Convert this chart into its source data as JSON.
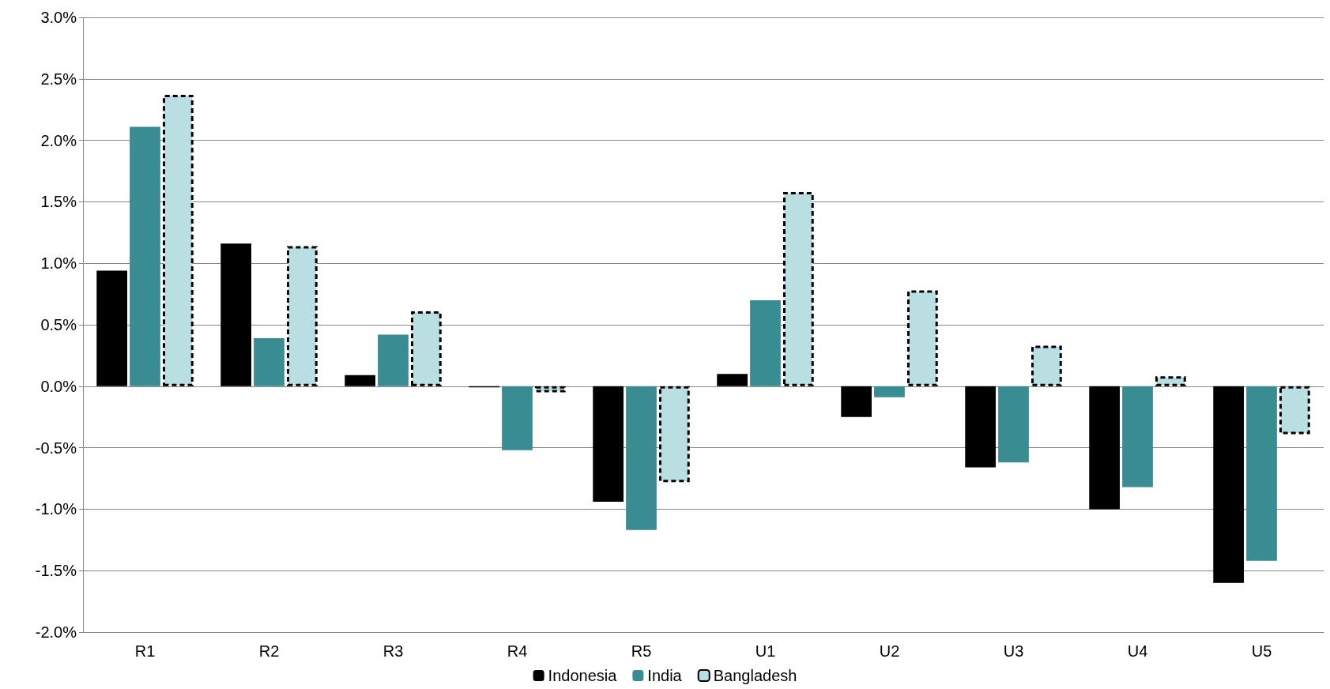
{
  "chart_data": {
    "type": "bar",
    "categories": [
      "R1",
      "R2",
      "R3",
      "R4",
      "R5",
      "U1",
      "U2",
      "U3",
      "U4",
      "U5"
    ],
    "series": [
      {
        "name": "Indonesia",
        "color": "#000000",
        "values": [
          0.94,
          1.16,
          0.09,
          -0.01,
          -0.94,
          0.1,
          -0.25,
          -0.66,
          -1.0,
          -1.6
        ]
      },
      {
        "name": "India",
        "color": "#3a8c93",
        "values": [
          2.11,
          0.39,
          0.42,
          -0.52,
          -1.17,
          0.7,
          -0.09,
          -0.62,
          -0.82,
          -1.42
        ]
      },
      {
        "name": "Bangladesh",
        "color": "#b9dfe3",
        "line_style": "dashed",
        "values": [
          2.37,
          1.14,
          0.61,
          -0.05,
          -0.78,
          1.58,
          0.78,
          0.33,
          0.08,
          -0.39
        ]
      }
    ],
    "ylim": [
      -2,
      3
    ],
    "yticks": [
      {
        "value": -2,
        "label": "-2.0%"
      },
      {
        "value": -1.5,
        "label": "-1.5%"
      },
      {
        "value": -1,
        "label": "-1.0%"
      },
      {
        "value": -0.5,
        "label": "-0.5%"
      },
      {
        "value": 0,
        "label": "0.0%"
      },
      {
        "value": 0.5,
        "label": "0.5%"
      },
      {
        "value": 1,
        "label": "1.0%"
      },
      {
        "value": 1.5,
        "label": "1.5%"
      },
      {
        "value": 2,
        "label": "2.0%"
      },
      {
        "value": 2.5,
        "label": "2.5%"
      },
      {
        "value": 3,
        "label": "3.0%"
      }
    ],
    "grid": "y",
    "legend": "bottom"
  }
}
